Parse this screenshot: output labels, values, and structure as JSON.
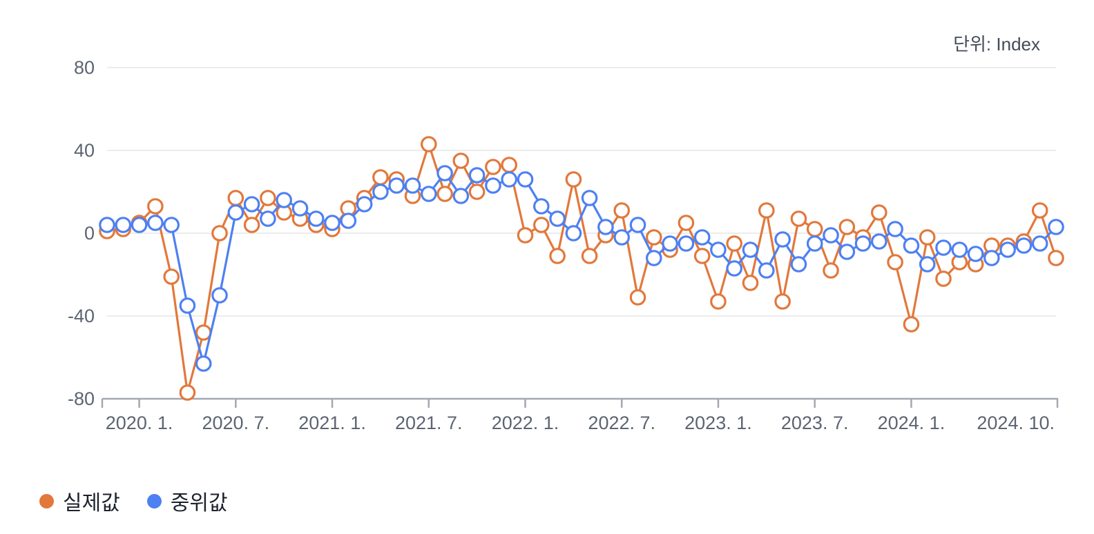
{
  "unit_label": "단위: Index",
  "legend": [
    {
      "label": "실제값",
      "color": "#e2783b"
    },
    {
      "label": "중위값",
      "color": "#4d80f2"
    }
  ],
  "chart_data": {
    "type": "line",
    "title": "",
    "unit": "Index",
    "grid": "horizontal",
    "legend_position": "bottom-left",
    "marker": "open-circle",
    "ylim": [
      -80,
      80
    ],
    "y_ticks": [
      80,
      40,
      0,
      -40,
      -80
    ],
    "x": [
      "2019.11",
      "2019.12",
      "2020.1",
      "2020.2",
      "2020.3",
      "2020.4",
      "2020.5",
      "2020.6",
      "2020.7",
      "2020.8",
      "2020.9",
      "2020.10",
      "2020.11",
      "2020.12",
      "2021.1",
      "2021.2",
      "2021.3",
      "2021.4",
      "2021.5",
      "2021.6",
      "2021.7",
      "2021.8",
      "2021.9",
      "2021.10",
      "2021.11",
      "2021.12",
      "2022.1",
      "2022.2",
      "2022.3",
      "2022.4",
      "2022.5",
      "2022.6",
      "2022.7",
      "2022.8",
      "2022.9",
      "2022.10",
      "2022.11",
      "2022.12",
      "2023.1",
      "2023.2",
      "2023.3",
      "2023.4",
      "2023.5",
      "2023.6",
      "2023.7",
      "2023.8",
      "2023.9",
      "2023.10",
      "2023.11",
      "2023.12",
      "2024.1",
      "2024.2",
      "2024.3",
      "2024.4",
      "2024.5",
      "2024.6",
      "2024.7",
      "2024.8",
      "2024.9",
      "2024.10"
    ],
    "x_tick_indices": [
      2,
      8,
      14,
      20,
      26,
      32,
      38,
      44,
      50,
      59
    ],
    "x_tick_labels": [
      "2020. 1.",
      "2020. 7.",
      "2021. 1.",
      "2021. 7.",
      "2022. 1.",
      "2022. 7.",
      "2023. 1.",
      "2023. 7.",
      "2024. 1.",
      "2024. 10."
    ],
    "series": [
      {
        "name": "실제값",
        "color": "#e2783b",
        "values": [
          1,
          2,
          5,
          13,
          -21,
          -77,
          -48,
          0,
          17,
          4,
          17,
          10,
          7,
          4,
          2,
          12,
          17,
          27,
          26,
          18,
          43,
          19,
          35,
          20,
          32,
          33,
          -1,
          4,
          -11,
          26,
          -11,
          -1,
          11,
          -31,
          -2,
          -8,
          5,
          -11,
          -33,
          -5,
          -24,
          11,
          -33,
          7,
          2,
          -18,
          3,
          -2,
          10,
          -14,
          -44,
          -2,
          -22,
          -14,
          -15,
          -6,
          -6,
          -4,
          11,
          -12
        ]
      },
      {
        "name": "중위값",
        "color": "#4d80f2",
        "values": [
          4,
          4,
          4,
          5,
          4,
          -35,
          -63,
          -30,
          10,
          14,
          7,
          16,
          12,
          7,
          5,
          6,
          14,
          20,
          23,
          23,
          19,
          29,
          18,
          28,
          23,
          26,
          26,
          13,
          7,
          0,
          17,
          3,
          -2,
          4,
          -12,
          -5,
          -5,
          -2,
          -8,
          -17,
          -8,
          -18,
          -3,
          -15,
          -5,
          -1,
          -9,
          -5,
          -4,
          2,
          -6,
          -15,
          -7,
          -8,
          -10,
          -12,
          -8,
          -6,
          -5,
          3
        ]
      }
    ],
    "colors": {
      "grid": "#ebecee",
      "axis": "#a2a8b3",
      "tick_label": "#5c6472",
      "legend_text": "#1c222d",
      "unit_text": "#434b59"
    }
  }
}
